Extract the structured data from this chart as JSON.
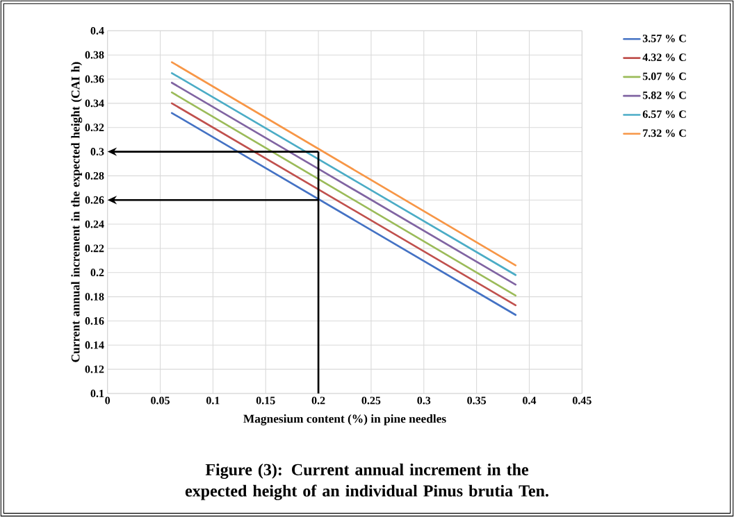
{
  "chart_data": {
    "type": "line",
    "title": "Figure (3): Current annual increment in the expected height of an individual Pinus brutia Ten.",
    "xlabel": "Magnesium content (%) in pine needles",
    "ylabel": "Current annual increment in the expected height (CAI h)",
    "x": [
      0.061,
      0.387
    ],
    "series": [
      {
        "name": "3.57 % C",
        "color": "#4472c4",
        "values": [
          0.332,
          0.165
        ]
      },
      {
        "name": "4.32 % C",
        "color": "#c0504d",
        "values": [
          0.34,
          0.173
        ]
      },
      {
        "name": "5.07 % C",
        "color": "#9bbb59",
        "values": [
          0.349,
          0.181
        ]
      },
      {
        "name": "5.82 % C",
        "color": "#8064a2",
        "values": [
          0.357,
          0.19
        ]
      },
      {
        "name": "6.57 % C",
        "color": "#4bacc6",
        "values": [
          0.365,
          0.198
        ]
      },
      {
        "name": "7.32 % C",
        "color": "#f79646",
        "values": [
          0.374,
          0.206
        ]
      }
    ],
    "ref_lines": [
      {
        "axis": "x",
        "value": 0.2,
        "color": "#000000"
      },
      {
        "axis": "y",
        "value": 0.3,
        "color": "#000000"
      },
      {
        "axis": "y",
        "value": 0.26,
        "color": "#000000"
      }
    ],
    "xlim": [
      0,
      0.45
    ],
    "xticks": [
      0,
      0.05,
      0.1,
      0.15,
      0.2,
      0.25,
      0.3,
      0.35,
      0.4,
      0.45
    ],
    "ylim": [
      0.1,
      0.4
    ],
    "yticks": [
      0.1,
      0.12,
      0.14,
      0.16,
      0.18,
      0.2,
      0.22,
      0.24,
      0.26,
      0.28,
      0.3,
      0.32,
      0.34,
      0.36,
      0.38,
      0.4
    ],
    "grid": true,
    "legend": "top right",
    "marker": "none",
    "line_style": "solid"
  }
}
